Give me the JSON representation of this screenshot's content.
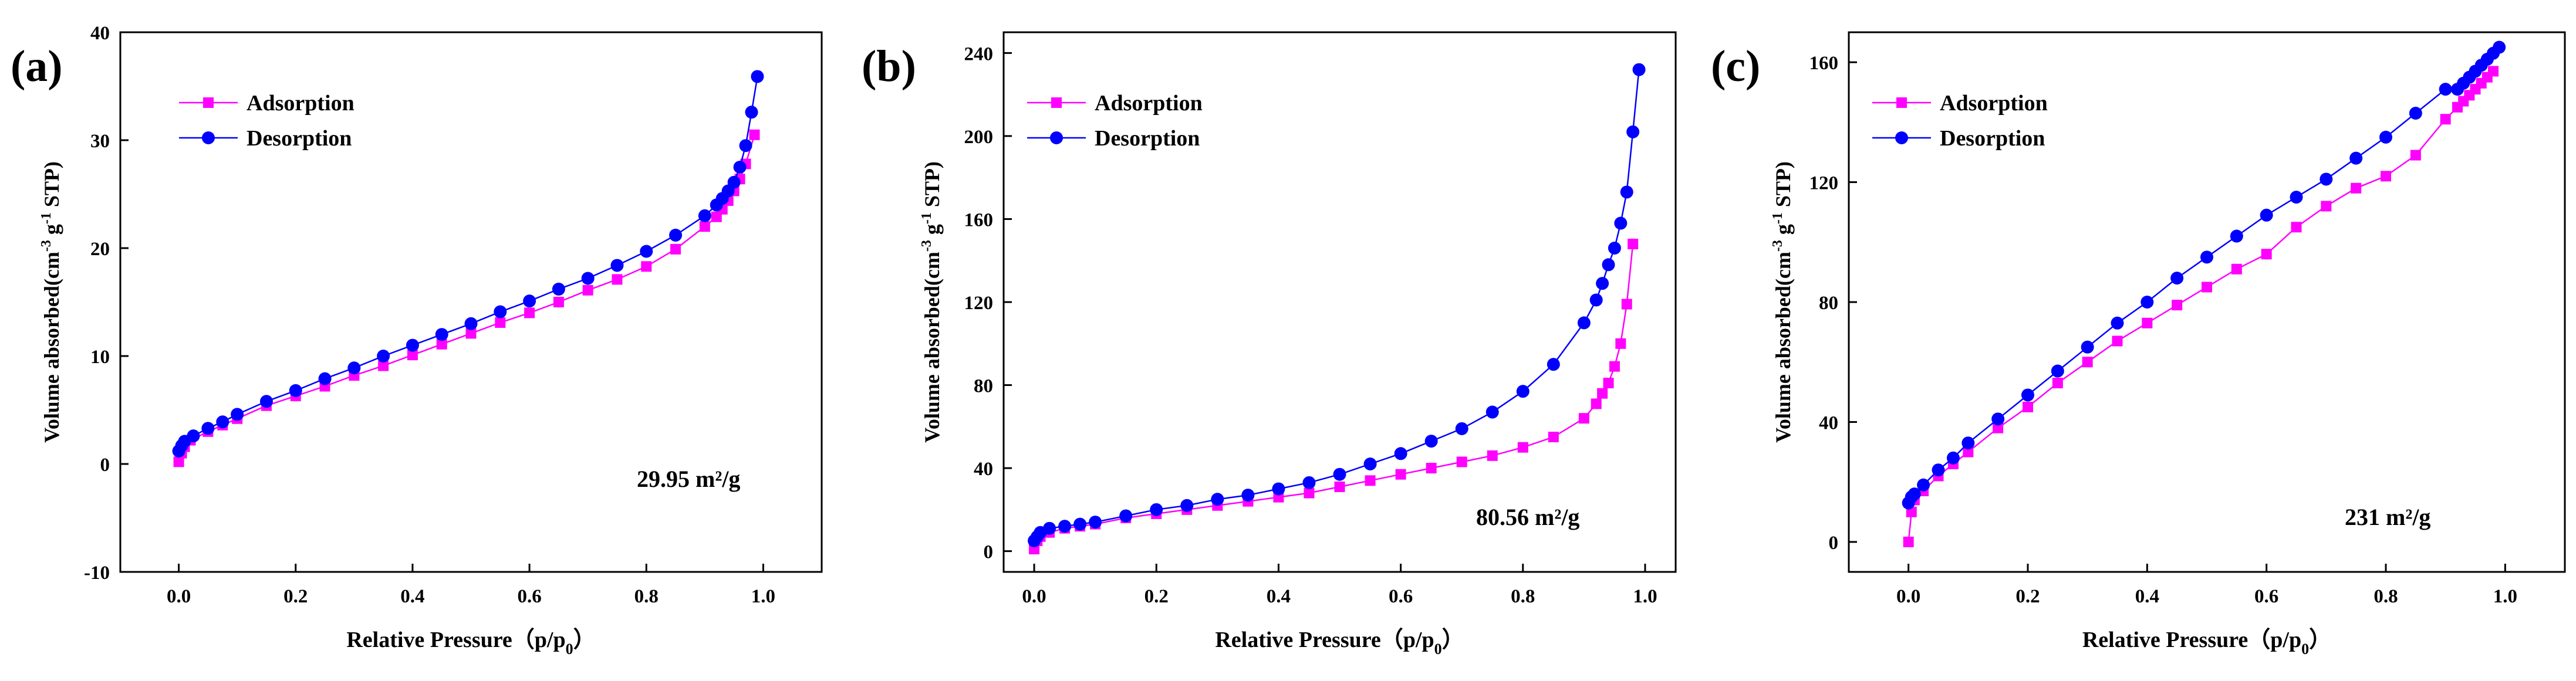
{
  "colors": {
    "adsorption": "#ff00ff",
    "desorption": "#0000ff",
    "axis": "#000000",
    "background": "#ffffff"
  },
  "chart_data": [
    {
      "type": "line",
      "panel_label": "(a)",
      "xlabel": "Relative Pressure（p/p",
      "xlabel_sub": "0",
      "xlabel_close": "）",
      "ylabel_parts": [
        "Volume absorbed(cm",
        "-3",
        " g",
        "-1",
        " STP)"
      ],
      "xlim": [
        -0.1,
        1.1
      ],
      "ylim": [
        -10,
        40
      ],
      "xticks": [
        0.0,
        0.2,
        0.4,
        0.6,
        0.8,
        1.0
      ],
      "xtick_labels": [
        "0.0",
        "0.2",
        "0.4",
        "0.6",
        "0.8",
        "1.0"
      ],
      "yticks": [
        -10,
        0,
        10,
        20,
        30,
        40
      ],
      "ytick_labels": [
        "-10",
        "0",
        "10",
        "20",
        "30",
        "40"
      ],
      "annotation": "29.95 m²/g",
      "legend": [
        "Adsorption",
        "Desorption"
      ],
      "series": [
        {
          "name": "Adsorption",
          "marker": "square",
          "x": [
            0.0,
            0.005,
            0.01,
            0.02,
            0.05,
            0.075,
            0.1,
            0.15,
            0.2,
            0.25,
            0.3,
            0.35,
            0.4,
            0.45,
            0.5,
            0.55,
            0.6,
            0.65,
            0.7,
            0.75,
            0.8,
            0.85,
            0.9,
            0.92,
            0.93,
            0.94,
            0.95,
            0.96,
            0.97,
            0.985
          ],
          "y": [
            0.2,
            1.0,
            1.6,
            2.2,
            3.0,
            3.6,
            4.2,
            5.4,
            6.3,
            7.2,
            8.2,
            9.1,
            10.1,
            11.1,
            12.1,
            13.1,
            14.0,
            15.0,
            16.1,
            17.1,
            18.3,
            19.9,
            22.0,
            22.9,
            23.6,
            24.4,
            25.3,
            26.4,
            27.8,
            30.5
          ]
        },
        {
          "name": "Desorption",
          "marker": "circle",
          "x": [
            0.0,
            0.005,
            0.01,
            0.025,
            0.05,
            0.075,
            0.1,
            0.15,
            0.2,
            0.25,
            0.3,
            0.35,
            0.4,
            0.45,
            0.5,
            0.55,
            0.6,
            0.65,
            0.7,
            0.75,
            0.8,
            0.85,
            0.9,
            0.92,
            0.93,
            0.94,
            0.95,
            0.96,
            0.97,
            0.98,
            0.99
          ],
          "y": [
            1.2,
            1.7,
            2.1,
            2.6,
            3.3,
            3.9,
            4.6,
            5.8,
            6.8,
            7.9,
            8.9,
            10.0,
            11.0,
            12.0,
            13.0,
            14.1,
            15.1,
            16.2,
            17.2,
            18.4,
            19.7,
            21.2,
            23.0,
            24.0,
            24.6,
            25.3,
            26.1,
            27.5,
            29.5,
            32.6,
            35.9
          ]
        }
      ]
    },
    {
      "type": "line",
      "panel_label": "(b)",
      "xlabel": "Relative Pressure（p/p",
      "xlabel_sub": "0",
      "xlabel_close": "）",
      "ylabel_parts": [
        "Volume absorbed(cm",
        "-3",
        " g",
        "-1",
        " STP)"
      ],
      "xlim": [
        -0.05,
        1.05
      ],
      "ylim": [
        -10,
        250
      ],
      "xticks": [
        0.0,
        0.2,
        0.4,
        0.6,
        0.8,
        1.0
      ],
      "xtick_labels": [
        "0.0",
        "0.2",
        "0.4",
        "0.6",
        "0.8",
        "1.0"
      ],
      "yticks": [
        0,
        40,
        80,
        120,
        160,
        200,
        240
      ],
      "ytick_labels": [
        "0",
        "40",
        "80",
        "120",
        "160",
        "200",
        "240"
      ],
      "annotation": "80.56 m²/g",
      "legend": [
        "Adsorption",
        "Desorption"
      ],
      "series": [
        {
          "name": "Adsorption",
          "marker": "square",
          "x": [
            0.0,
            0.005,
            0.01,
            0.025,
            0.05,
            0.075,
            0.1,
            0.15,
            0.2,
            0.25,
            0.3,
            0.35,
            0.4,
            0.45,
            0.5,
            0.55,
            0.6,
            0.65,
            0.7,
            0.75,
            0.8,
            0.85,
            0.9,
            0.92,
            0.93,
            0.94,
            0.95,
            0.96,
            0.97,
            0.98
          ],
          "y": [
            1,
            5,
            7,
            9,
            11,
            12,
            13,
            16,
            18,
            20,
            22,
            24,
            26,
            28,
            31,
            34,
            37,
            40,
            43,
            46,
            50,
            55,
            64,
            71,
            76,
            81,
            89,
            100,
            119,
            148
          ]
        },
        {
          "name": "Desorption",
          "marker": "circle",
          "x": [
            0.0,
            0.005,
            0.01,
            0.025,
            0.05,
            0.075,
            0.1,
            0.15,
            0.2,
            0.25,
            0.3,
            0.35,
            0.4,
            0.45,
            0.5,
            0.55,
            0.6,
            0.65,
            0.7,
            0.75,
            0.8,
            0.85,
            0.9,
            0.92,
            0.93,
            0.94,
            0.95,
            0.96,
            0.97,
            0.98,
            0.99
          ],
          "y": [
            5,
            7,
            9,
            11,
            12,
            13,
            14,
            17,
            20,
            22,
            25,
            27,
            30,
            33,
            37,
            42,
            47,
            53,
            59,
            67,
            77,
            90,
            110,
            121,
            129,
            138,
            146,
            158,
            173,
            202,
            232
          ]
        }
      ]
    },
    {
      "type": "line",
      "panel_label": "(c)",
      "xlabel": "Relative Pressure（p/p",
      "xlabel_sub": "0",
      "xlabel_close": "）",
      "ylabel_parts": [
        "Volume absorbed(cm",
        "-3",
        " g",
        "-1",
        " STP)"
      ],
      "xlim": [
        -0.1,
        1.1
      ],
      "ylim": [
        -10,
        170
      ],
      "xticks": [
        0.0,
        0.2,
        0.4,
        0.6,
        0.8,
        1.0
      ],
      "xtick_labels": [
        "0.0",
        "0.2",
        "0.4",
        "0.6",
        "0.8",
        "1.0"
      ],
      "yticks": [
        0,
        40,
        80,
        120,
        160
      ],
      "ytick_labels": [
        "0",
        "40",
        "80",
        "120",
        "160"
      ],
      "annotation": "231 m²/g",
      "legend": [
        "Adsorption",
        "Desorption"
      ],
      "series": [
        {
          "name": "Adsorption",
          "marker": "square",
          "x": [
            0.0,
            0.005,
            0.01,
            0.025,
            0.05,
            0.075,
            0.1,
            0.15,
            0.2,
            0.25,
            0.3,
            0.35,
            0.4,
            0.45,
            0.5,
            0.55,
            0.6,
            0.65,
            0.7,
            0.75,
            0.8,
            0.85,
            0.9,
            0.92,
            0.93,
            0.94,
            0.95,
            0.96,
            0.97,
            0.98
          ],
          "y": [
            0,
            10,
            14,
            17,
            22,
            26,
            30,
            38,
            45,
            53,
            60,
            67,
            73,
            79,
            85,
            91,
            96,
            105,
            112,
            118,
            122,
            129,
            141,
            145,
            147,
            149,
            151,
            153,
            155,
            157
          ]
        },
        {
          "name": "Desorption",
          "marker": "circle",
          "x": [
            0.0,
            0.005,
            0.01,
            0.025,
            0.05,
            0.075,
            0.1,
            0.15,
            0.2,
            0.25,
            0.3,
            0.35,
            0.4,
            0.45,
            0.5,
            0.55,
            0.6,
            0.65,
            0.7,
            0.75,
            0.8,
            0.85,
            0.9,
            0.92,
            0.93,
            0.94,
            0.95,
            0.96,
            0.97,
            0.98,
            0.99
          ],
          "y": [
            13,
            15,
            16,
            19,
            24,
            28,
            33,
            41,
            49,
            57,
            65,
            73,
            80,
            88,
            95,
            102,
            109,
            115,
            121,
            128,
            135,
            143,
            151,
            151,
            153,
            155,
            157,
            159,
            161,
            163,
            165
          ]
        }
      ]
    }
  ]
}
